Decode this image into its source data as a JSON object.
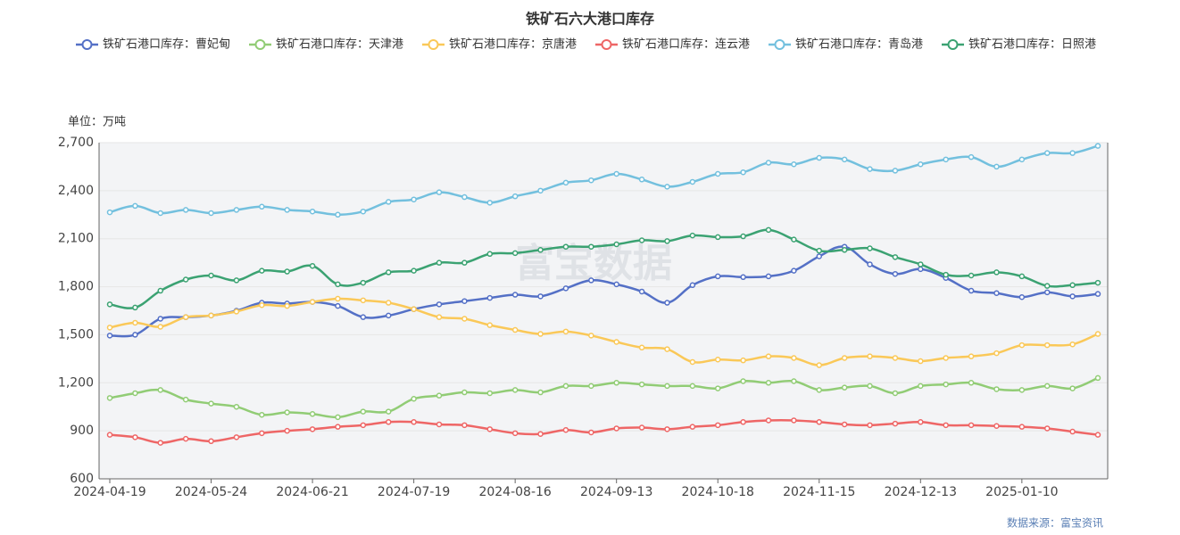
{
  "chart_data": {
    "type": "line",
    "title": "铁矿石六大港口库存",
    "unit_label": "单位：万吨",
    "source": "数据来源：富宝资讯",
    "watermark": "富宝数据",
    "categories": [
      "2024-04-19",
      null,
      null,
      null,
      "2024-05-24",
      null,
      null,
      null,
      "2024-06-21",
      null,
      null,
      null,
      "2024-07-19",
      null,
      null,
      null,
      "2024-08-16",
      null,
      null,
      null,
      "2024-09-13",
      null,
      null,
      null,
      "2024-10-18",
      null,
      null,
      null,
      "2024-11-15",
      null,
      null,
      null,
      "2024-12-13",
      null,
      null,
      null,
      "2025-01-10",
      null,
      null,
      null
    ],
    "ylim": [
      600,
      2700
    ],
    "yticks": [
      600,
      900,
      {
        "value": 1200,
        "label": "1,200"
      },
      {
        "value": 1500,
        "label": "1,500"
      },
      {
        "value": 1800,
        "label": "1,800"
      },
      {
        "value": 2100,
        "label": "2,100"
      },
      {
        "value": 2400,
        "label": "2,400"
      },
      {
        "value": 2700,
        "label": "2,700"
      }
    ],
    "grid": true,
    "series": [
      {
        "name": "铁矿石港口库存：曹妃甸",
        "color": "#5470c6",
        "values": [
          1495,
          1500,
          1600,
          1610,
          1620,
          1650,
          1700,
          1695,
          1705,
          1680,
          1610,
          1620,
          1660,
          1690,
          1710,
          1730,
          1750,
          1740,
          1790,
          1840,
          1815,
          1770,
          1700,
          1810,
          1865,
          1860,
          1865,
          1900,
          1990,
          2050,
          1940,
          1880,
          1910,
          1855,
          1775,
          1760,
          1735,
          1765,
          1740,
          1755
        ]
      },
      {
        "name": "铁矿石港口库存：天津港",
        "color": "#91cc75",
        "values": [
          1105,
          1135,
          1155,
          1095,
          1070,
          1050,
          1000,
          1015,
          1005,
          985,
          1020,
          1020,
          1100,
          1120,
          1140,
          1135,
          1155,
          1140,
          1180,
          1180,
          1200,
          1190,
          1180,
          1180,
          1165,
          1210,
          1200,
          1210,
          1155,
          1170,
          1180,
          1135,
          1180,
          1190,
          1200,
          1160,
          1155,
          1180,
          1165,
          1230
        ]
      },
      {
        "name": "铁矿石港口库存：京唐港",
        "color": "#fac858",
        "values": [
          1545,
          1575,
          1550,
          1610,
          1620,
          1645,
          1685,
          1680,
          1705,
          1725,
          1715,
          1700,
          1660,
          1610,
          1600,
          1560,
          1530,
          1505,
          1520,
          1495,
          1455,
          1420,
          1410,
          1330,
          1345,
          1340,
          1365,
          1355,
          1310,
          1355,
          1365,
          1355,
          1335,
          1355,
          1365,
          1385,
          1435,
          1435,
          1440,
          1505
        ]
      },
      {
        "name": "铁矿石港口库存：连云港",
        "color": "#ee6666",
        "values": [
          875,
          860,
          825,
          850,
          835,
          860,
          885,
          900,
          910,
          925,
          935,
          955,
          955,
          940,
          935,
          910,
          885,
          880,
          905,
          890,
          915,
          920,
          910,
          925,
          935,
          955,
          965,
          965,
          955,
          940,
          935,
          945,
          955,
          935,
          935,
          930,
          925,
          915,
          895,
          875
        ]
      },
      {
        "name": "铁矿石港口库存：青岛港",
        "color": "#73c0de",
        "values": [
          2265,
          2305,
          2260,
          2280,
          2260,
          2280,
          2300,
          2280,
          2270,
          2250,
          2270,
          2330,
          2345,
          2390,
          2360,
          2325,
          2365,
          2400,
          2450,
          2465,
          2505,
          2470,
          2425,
          2455,
          2505,
          2515,
          2575,
          2565,
          2605,
          2595,
          2535,
          2525,
          2565,
          2595,
          2610,
          2550,
          2595,
          2635,
          2635,
          2680
        ]
      },
      {
        "name": "铁矿石港口库存：日照港",
        "color": "#3ba272",
        "values": [
          1690,
          1670,
          1775,
          1845,
          1870,
          1840,
          1900,
          1895,
          1930,
          1815,
          1825,
          1890,
          1900,
          1950,
          1950,
          2005,
          2010,
          2030,
          2050,
          2050,
          2065,
          2090,
          2085,
          2120,
          2110,
          2115,
          2155,
          2095,
          2025,
          2030,
          2040,
          1985,
          1940,
          1875,
          1870,
          1890,
          1865,
          1805,
          1810,
          1825
        ]
      }
    ]
  }
}
